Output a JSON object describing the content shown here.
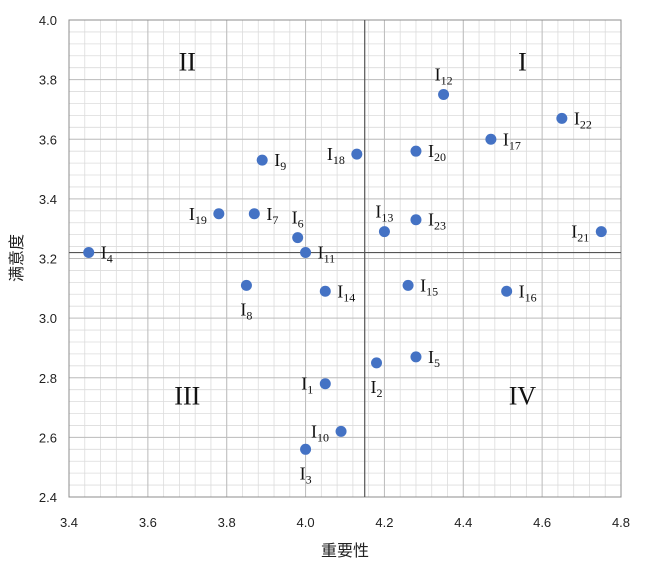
{
  "chart_data": {
    "type": "scatter",
    "xlabel": "重要性",
    "ylabel": "满意度",
    "xlim": [
      3.4,
      4.8
    ],
    "ylim": [
      2.4,
      4.0
    ],
    "x_ticks": [
      "3.4",
      "3.6",
      "3.8",
      "4.0",
      "4.2",
      "4.4",
      "4.6",
      "4.8"
    ],
    "y_ticks": [
      "2.4",
      "2.6",
      "2.8",
      "3.0",
      "3.2",
      "3.4",
      "3.6",
      "3.8",
      "4.0"
    ],
    "grid": true,
    "marker_color": "#4472C4",
    "reference_lines": {
      "x": 4.15,
      "y": 3.22
    },
    "quadrants": [
      {
        "label": "I",
        "x": 4.55,
        "y": 3.86
      },
      {
        "label": "II",
        "x": 3.7,
        "y": 3.86
      },
      {
        "label": "III",
        "x": 3.7,
        "y": 2.74
      },
      {
        "label": "IV",
        "x": 4.55,
        "y": 2.74
      }
    ],
    "points": [
      {
        "label": "I",
        "sub": "1",
        "x": 4.05,
        "y": 2.78,
        "pos": "left"
      },
      {
        "label": "I",
        "sub": "2",
        "x": 4.18,
        "y": 2.85,
        "pos": "below"
      },
      {
        "label": "I",
        "sub": "3",
        "x": 4.0,
        "y": 2.56,
        "pos": "below"
      },
      {
        "label": "I",
        "sub": "4",
        "x": 3.45,
        "y": 3.22,
        "pos": "right"
      },
      {
        "label": "I",
        "sub": "5",
        "x": 4.28,
        "y": 2.87,
        "pos": "right"
      },
      {
        "label": "I",
        "sub": "6",
        "x": 3.98,
        "y": 3.27,
        "pos": "above"
      },
      {
        "label": "I",
        "sub": "7",
        "x": 3.87,
        "y": 3.35,
        "pos": "right"
      },
      {
        "label": "I",
        "sub": "8",
        "x": 3.85,
        "y": 3.11,
        "pos": "below"
      },
      {
        "label": "I",
        "sub": "9",
        "x": 3.89,
        "y": 3.53,
        "pos": "right"
      },
      {
        "label": "I",
        "sub": "10",
        "x": 4.09,
        "y": 2.62,
        "pos": "left"
      },
      {
        "label": "I",
        "sub": "11",
        "x": 4.0,
        "y": 3.22,
        "pos": "right"
      },
      {
        "label": "I",
        "sub": "12",
        "x": 4.35,
        "y": 3.75,
        "pos": "above"
      },
      {
        "label": "I",
        "sub": "13",
        "x": 4.2,
        "y": 3.29,
        "pos": "above"
      },
      {
        "label": "I",
        "sub": "14",
        "x": 4.05,
        "y": 3.09,
        "pos": "right"
      },
      {
        "label": "I",
        "sub": "15",
        "x": 4.26,
        "y": 3.11,
        "pos": "right"
      },
      {
        "label": "I",
        "sub": "16",
        "x": 4.51,
        "y": 3.09,
        "pos": "right"
      },
      {
        "label": "I",
        "sub": "17",
        "x": 4.47,
        "y": 3.6,
        "pos": "right"
      },
      {
        "label": "I",
        "sub": "18",
        "x": 4.13,
        "y": 3.55,
        "pos": "left"
      },
      {
        "label": "I",
        "sub": "19",
        "x": 3.78,
        "y": 3.35,
        "pos": "left"
      },
      {
        "label": "I",
        "sub": "20",
        "x": 4.28,
        "y": 3.56,
        "pos": "right"
      },
      {
        "label": "I",
        "sub": "21",
        "x": 4.75,
        "y": 3.29,
        "pos": "left"
      },
      {
        "label": "I",
        "sub": "22",
        "x": 4.65,
        "y": 3.67,
        "pos": "right"
      },
      {
        "label": "I",
        "sub": "23",
        "x": 4.28,
        "y": 3.33,
        "pos": "right"
      }
    ]
  }
}
